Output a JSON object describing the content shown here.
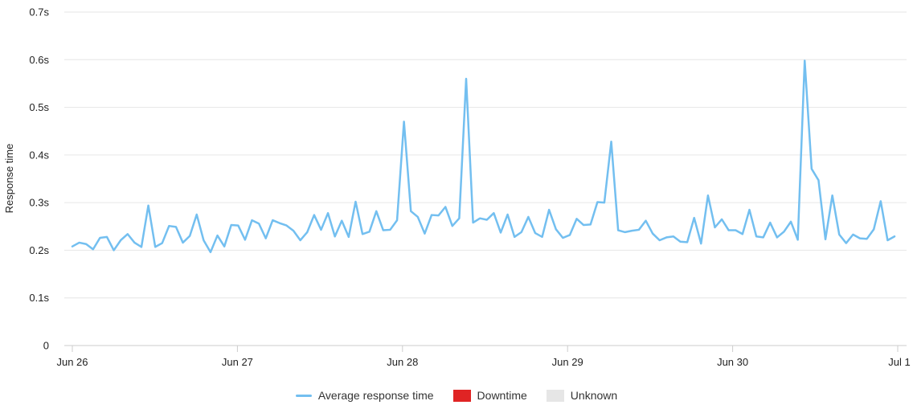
{
  "chart_data": {
    "type": "line",
    "ylabel": "Response time",
    "xlabel": "",
    "ylim": [
      0,
      0.7
    ],
    "y_ticks": [
      "0",
      "0.1s",
      "0.2s",
      "0.3s",
      "0.4s",
      "0.5s",
      "0.6s",
      "0.7s"
    ],
    "x_ticks": [
      "Jun 26",
      "Jun 27",
      "Jun 28",
      "Jun 29",
      "Jun 30",
      "Jul 1"
    ],
    "grid": "horizontal",
    "legend_position": "bottom-center",
    "series": [
      {
        "name": "Average response time",
        "color": "#73bff0",
        "values": [
          0.208,
          0.216,
          0.213,
          0.202,
          0.226,
          0.228,
          0.2,
          0.221,
          0.234,
          0.216,
          0.207,
          0.294,
          0.207,
          0.215,
          0.251,
          0.249,
          0.216,
          0.23,
          0.275,
          0.221,
          0.196,
          0.231,
          0.208,
          0.253,
          0.252,
          0.222,
          0.263,
          0.256,
          0.225,
          0.263,
          0.257,
          0.252,
          0.241,
          0.221,
          0.238,
          0.274,
          0.243,
          0.278,
          0.229,
          0.262,
          0.228,
          0.302,
          0.234,
          0.239,
          0.282,
          0.242,
          0.243,
          0.263,
          0.47,
          0.282,
          0.27,
          0.235,
          0.274,
          0.273,
          0.291,
          0.251,
          0.267,
          0.56,
          0.258,
          0.267,
          0.264,
          0.278,
          0.237,
          0.275,
          0.228,
          0.238,
          0.27,
          0.236,
          0.228,
          0.285,
          0.244,
          0.226,
          0.232,
          0.266,
          0.253,
          0.254,
          0.301,
          0.3,
          0.428,
          0.242,
          0.238,
          0.241,
          0.243,
          0.262,
          0.235,
          0.221,
          0.227,
          0.229,
          0.218,
          0.217,
          0.268,
          0.214,
          0.315,
          0.248,
          0.265,
          0.242,
          0.242,
          0.234,
          0.285,
          0.229,
          0.227,
          0.258,
          0.227,
          0.239,
          0.26,
          0.222,
          0.598,
          0.371,
          0.347,
          0.223,
          0.315,
          0.233,
          0.215,
          0.233,
          0.225,
          0.224,
          0.244,
          0.303,
          0.221,
          0.229
        ]
      }
    ],
    "legend": [
      {
        "label": "Average response time",
        "kind": "line",
        "color": "#73bff0"
      },
      {
        "label": "Downtime",
        "kind": "box",
        "color": "#e02424"
      },
      {
        "label": "Unknown",
        "kind": "box",
        "color": "#e6e6e6"
      }
    ]
  }
}
